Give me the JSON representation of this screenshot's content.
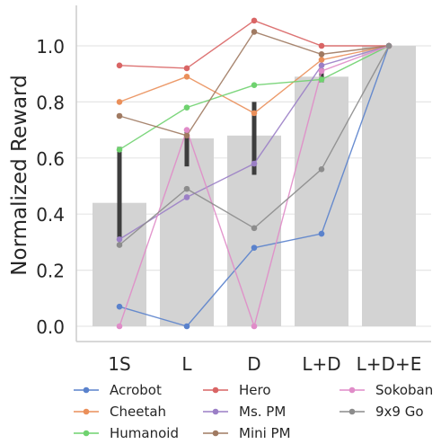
{
  "chart_data": {
    "type": "bar",
    "ylabel": "Normalized Reward",
    "xlabel": "",
    "categories": [
      "1S",
      "L",
      "D",
      "L+D",
      "L+D+E"
    ],
    "ylim": [
      -0.06,
      1.15
    ],
    "yticks": [
      "0.0",
      "0.2",
      "0.4",
      "0.6",
      "0.8",
      "1.0"
    ],
    "grid": "horizontal",
    "legend_position": "bottom",
    "bar_color": "#d3d3d3",
    "bar_values": [
      0.44,
      0.67,
      0.68,
      0.89,
      1.0
    ],
    "error_bars": [
      [
        0.31,
        0.64
      ],
      [
        0.57,
        0.7
      ],
      [
        0.54,
        0.8
      ],
      [
        0.87,
        0.92
      ],
      [
        0.995,
        1.005
      ]
    ],
    "series": [
      {
        "name": "Acrobot",
        "color": "#5a82cc",
        "values": [
          0.07,
          0.0,
          0.28,
          0.33,
          1.0
        ]
      },
      {
        "name": "Cheetah",
        "color": "#ea8f5a",
        "values": [
          0.8,
          0.89,
          0.76,
          0.95,
          1.0
        ]
      },
      {
        "name": "Humanoid",
        "color": "#6fd26f",
        "values": [
          0.63,
          0.78,
          0.86,
          0.88,
          1.0
        ]
      },
      {
        "name": "Hero",
        "color": "#d96565",
        "values": [
          0.93,
          0.92,
          1.09,
          1.0,
          1.0
        ]
      },
      {
        "name": "Ms. PM",
        "color": "#9b7fc6",
        "values": [
          0.31,
          0.46,
          0.58,
          0.93,
          1.0
        ]
      },
      {
        "name": "Mini PM",
        "color": "#a07a62",
        "values": [
          0.75,
          0.68,
          1.05,
          0.97,
          1.0
        ]
      },
      {
        "name": "Sokoban",
        "color": "#e08cc8",
        "values": [
          0.0,
          0.7,
          0.0,
          0.91,
          1.0
        ]
      },
      {
        "name": "9x9 Go",
        "color": "#8c8c8c",
        "values": [
          0.29,
          0.49,
          0.35,
          0.56,
          1.0
        ]
      }
    ]
  }
}
